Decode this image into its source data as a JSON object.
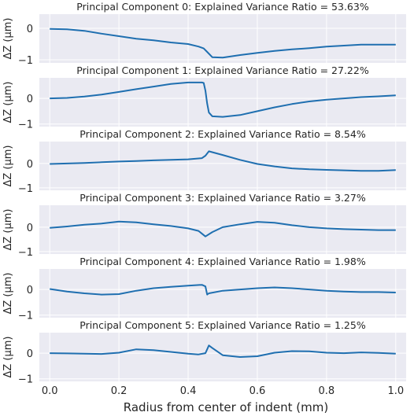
{
  "figure": {
    "xlabel": "Radius from center of indent (mm)",
    "ylabel": "ΔZ (μm)"
  },
  "colors": {
    "line": "#1f6fb0",
    "panel_bg": "#eaeaf2",
    "grid": "#ffffff",
    "text": "#262626"
  },
  "chart_data": [
    {
      "type": "line",
      "title": "Principal Component 0: Explained Variance Ratio = 53.63%",
      "ylabel": "ΔZ (μm)",
      "xlim": [
        -0.03,
        1.03
      ],
      "ylim": [
        -1.1,
        0.45
      ],
      "xticks": [
        0.0,
        0.2,
        0.4,
        0.6,
        0.8,
        1.0
      ],
      "yticks": [
        0,
        -1
      ],
      "x": [
        0.0,
        0.05,
        0.1,
        0.15,
        0.2,
        0.25,
        0.3,
        0.35,
        0.4,
        0.43,
        0.445,
        0.455,
        0.47,
        0.5,
        0.55,
        0.6,
        0.65,
        0.7,
        0.75,
        0.8,
        0.85,
        0.9,
        0.95,
        1.0
      ],
      "y": [
        -0.02,
        -0.03,
        -0.08,
        -0.17,
        -0.25,
        -0.33,
        -0.38,
        -0.45,
        -0.5,
        -0.58,
        -0.64,
        -0.75,
        -0.92,
        -0.93,
        -0.85,
        -0.78,
        -0.72,
        -0.67,
        -0.63,
        -0.58,
        -0.55,
        -0.52,
        -0.52,
        -0.52
      ]
    },
    {
      "type": "line",
      "title": "Principal Component 1: Explained Variance Ratio = 27.22%",
      "ylabel": "ΔZ (μm)",
      "xlim": [
        -0.03,
        1.03
      ],
      "ylim": [
        -1.1,
        0.8
      ],
      "xticks": [
        0.0,
        0.2,
        0.4,
        0.6,
        0.8,
        1.0
      ],
      "yticks": [
        0,
        -1
      ],
      "x": [
        0.0,
        0.05,
        0.1,
        0.15,
        0.2,
        0.25,
        0.3,
        0.35,
        0.4,
        0.44,
        0.445,
        0.45,
        0.455,
        0.46,
        0.47,
        0.5,
        0.55,
        0.6,
        0.65,
        0.7,
        0.75,
        0.8,
        0.85,
        0.9,
        0.95,
        1.0
      ],
      "y": [
        0.0,
        0.02,
        0.07,
        0.15,
        0.25,
        0.36,
        0.46,
        0.56,
        0.62,
        0.62,
        0.6,
        0.3,
        -0.2,
        -0.55,
        -0.7,
        -0.72,
        -0.65,
        -0.5,
        -0.35,
        -0.22,
        -0.12,
        -0.05,
        0.0,
        0.05,
        0.08,
        0.12
      ]
    },
    {
      "type": "line",
      "title": "Principal Component 2: Explained Variance Ratio = 8.54%",
      "ylabel": "ΔZ (μm)",
      "xlim": [
        -0.03,
        1.03
      ],
      "ylim": [
        -1.1,
        0.9
      ],
      "xticks": [
        0.0,
        0.2,
        0.4,
        0.6,
        0.8,
        1.0
      ],
      "yticks": [
        0,
        -1
      ],
      "x": [
        0.0,
        0.05,
        0.1,
        0.15,
        0.2,
        0.25,
        0.3,
        0.35,
        0.4,
        0.44,
        0.45,
        0.46,
        0.5,
        0.55,
        0.6,
        0.65,
        0.7,
        0.75,
        0.8,
        0.85,
        0.9,
        0.95,
        1.0
      ],
      "y": [
        -0.02,
        0.0,
        0.02,
        0.05,
        0.08,
        0.1,
        0.13,
        0.15,
        0.17,
        0.22,
        0.32,
        0.5,
        0.35,
        0.15,
        -0.02,
        -0.12,
        -0.2,
        -0.24,
        -0.26,
        -0.28,
        -0.3,
        -0.3,
        -0.27
      ]
    },
    {
      "type": "line",
      "title": "Principal Component 3: Explained Variance Ratio = 3.27%",
      "ylabel": "ΔZ (μm)",
      "xlim": [
        -0.03,
        1.03
      ],
      "ylim": [
        -1.1,
        0.9
      ],
      "xticks": [
        0.0,
        0.2,
        0.4,
        0.6,
        0.8,
        1.0
      ],
      "yticks": [
        0,
        -1
      ],
      "x": [
        0.0,
        0.05,
        0.1,
        0.15,
        0.2,
        0.25,
        0.3,
        0.35,
        0.4,
        0.43,
        0.45,
        0.47,
        0.5,
        0.55,
        0.6,
        0.65,
        0.7,
        0.75,
        0.8,
        0.85,
        0.9,
        0.95,
        1.0
      ],
      "y": [
        -0.03,
        0.03,
        0.1,
        0.15,
        0.23,
        0.2,
        0.12,
        0.05,
        -0.05,
        -0.15,
        -0.38,
        -0.2,
        0.0,
        0.12,
        0.22,
        0.18,
        0.08,
        0.0,
        -0.05,
        -0.08,
        -0.1,
        -0.12,
        -0.12
      ]
    },
    {
      "type": "line",
      "title": "Principal Component 4: Explained Variance Ratio = 1.98%",
      "ylabel": "ΔZ (μm)",
      "xlim": [
        -0.03,
        1.03
      ],
      "ylim": [
        -1.1,
        0.8
      ],
      "xticks": [
        0.0,
        0.2,
        0.4,
        0.6,
        0.8,
        1.0
      ],
      "yticks": [
        0,
        -1
      ],
      "x": [
        0.0,
        0.05,
        0.1,
        0.15,
        0.2,
        0.25,
        0.3,
        0.35,
        0.4,
        0.44,
        0.45,
        0.455,
        0.46,
        0.5,
        0.55,
        0.6,
        0.65,
        0.7,
        0.75,
        0.8,
        0.85,
        0.9,
        0.95,
        1.0
      ],
      "y": [
        0.02,
        -0.08,
        -0.15,
        -0.2,
        -0.18,
        -0.05,
        0.05,
        0.1,
        0.15,
        0.18,
        0.12,
        -0.2,
        -0.15,
        -0.05,
        0.0,
        0.05,
        0.08,
        0.05,
        0.0,
        -0.05,
        -0.08,
        -0.1,
        -0.1,
        -0.12
      ]
    },
    {
      "type": "line",
      "title": "Principal Component 5: Explained Variance Ratio = 1.25%",
      "ylabel": "ΔZ (μm)",
      "xlim": [
        -0.03,
        1.03
      ],
      "ylim": [
        -1.1,
        0.8
      ],
      "xticks": [
        0.0,
        0.2,
        0.4,
        0.6,
        0.8,
        1.0
      ],
      "yticks": [
        0,
        -1
      ],
      "x": [
        0.0,
        0.05,
        0.1,
        0.15,
        0.2,
        0.25,
        0.3,
        0.35,
        0.4,
        0.43,
        0.45,
        0.46,
        0.47,
        0.5,
        0.55,
        0.6,
        0.65,
        0.7,
        0.75,
        0.8,
        0.85,
        0.9,
        0.95,
        1.0
      ],
      "y": [
        0.0,
        -0.01,
        -0.02,
        -0.03,
        0.02,
        0.15,
        0.12,
        0.05,
        -0.02,
        -0.05,
        0.0,
        0.3,
        0.2,
        -0.08,
        -0.15,
        -0.12,
        0.02,
        0.08,
        0.07,
        0.02,
        0.0,
        0.03,
        0.01,
        -0.02
      ]
    }
  ]
}
